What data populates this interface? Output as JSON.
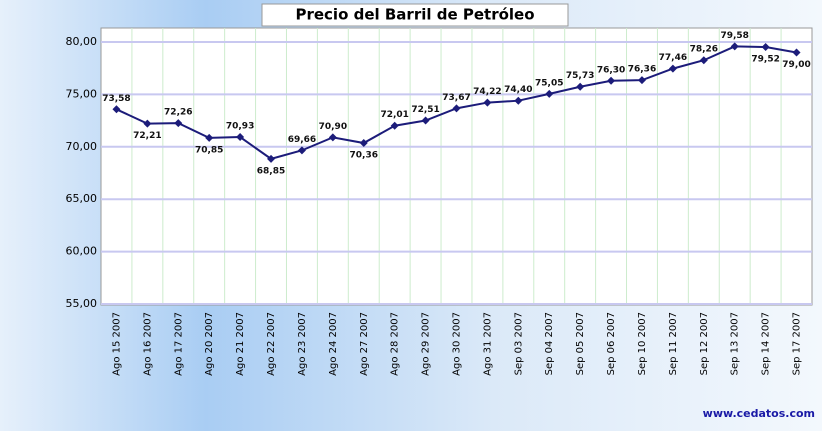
{
  "chart_data": {
    "type": "line",
    "title": "Precio del Barril de Petróleo",
    "source": "www.cedatos.com",
    "categories": [
      "Ago 15 2007",
      "Ago 16 2007",
      "Ago 17 2007",
      "Ago 20 2007",
      "Ago 21 2007",
      "Ago 22 2007",
      "Ago 23 2007",
      "Ago 24 2007",
      "Ago 27 2007",
      "Ago 28 2007",
      "Ago 29 2007",
      "Ago 30 2007",
      "Ago 31 2007",
      "Sep 03 2007",
      "Sep 04 2007",
      "Sep 05 2007",
      "Sep 06 2007",
      "Sep 10 2007",
      "Sep 11 2007",
      "Sep 12 2007",
      "Sep 13 2007",
      "Sep 14 2007",
      "Sep 17 2007"
    ],
    "series": [
      {
        "color": "#1c1c7a",
        "values": [
          73.58,
          72.21,
          72.26,
          70.85,
          70.93,
          68.85,
          69.66,
          70.9,
          70.36,
          72.01,
          72.51,
          73.67,
          74.22,
          74.4,
          75.05,
          75.73,
          76.3,
          76.36,
          77.46,
          78.26,
          79.58,
          79.52,
          79.0
        ],
        "value_labels": [
          "73,58",
          "72,21",
          "72,26",
          "70,85",
          "70,93",
          "68,85",
          "69,66",
          "70,90",
          "70,36",
          "72,01",
          "72,51",
          "73,67",
          "74,22",
          "74,40",
          "75,05",
          "75,73",
          "76,30",
          "76,36",
          "77,46",
          "78,26",
          "79,58",
          "79,52",
          "79,00"
        ]
      }
    ],
    "ylim": [
      55,
      80
    ],
    "yticks": [
      {
        "value": 55,
        "label": "55,00"
      },
      {
        "value": 60,
        "label": "60,00"
      },
      {
        "value": 65,
        "label": "65,00"
      },
      {
        "value": 70,
        "label": "70,00"
      },
      {
        "value": 75,
        "label": "75,00"
      },
      {
        "value": 80,
        "label": "80,00"
      }
    ],
    "grid": true
  }
}
